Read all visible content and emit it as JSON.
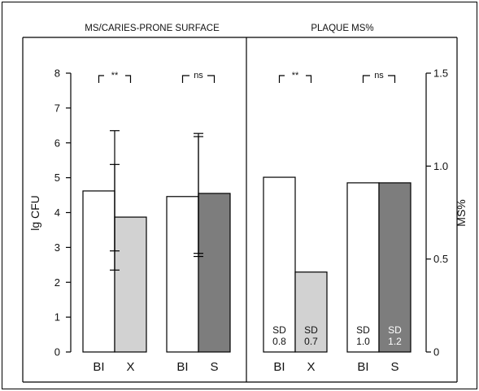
{
  "chart_data": [
    {
      "type": "bar",
      "title": "MS/CARIES-PRONE SURFACE",
      "ylabel": "lg CFU",
      "ylim": [
        0,
        8
      ],
      "yticks": [
        0,
        1,
        2,
        3,
        4,
        5,
        6,
        7,
        8
      ],
      "categories": [
        "BI",
        "X",
        "BI",
        "S"
      ],
      "values": [
        4.62,
        3.87,
        4.46,
        4.55
      ],
      "error_upper": [
        6.35,
        5.38,
        6.18,
        6.27
      ],
      "error_lower": [
        2.9,
        2.35,
        2.74,
        2.83
      ],
      "colors": [
        "#ffffff",
        "#d2d2d2",
        "#ffffff",
        "#7d7d7d"
      ],
      "significance": [
        {
          "from": 0,
          "to": 1,
          "label": "**"
        },
        {
          "from": 2,
          "to": 3,
          "label": "ns"
        }
      ]
    },
    {
      "type": "bar",
      "title": "PLAQUE MS%",
      "ylabel": "MS%",
      "ylim": [
        0,
        1.5
      ],
      "yticks": [
        "0",
        "0.5",
        "1.0",
        "1.5"
      ],
      "ytick_values": [
        0,
        0.5,
        1.0,
        1.5
      ],
      "axis_side": "right",
      "categories": [
        "BI",
        "X",
        "BI",
        "S"
      ],
      "values": [
        0.94,
        0.43,
        0.91,
        0.91
      ],
      "colors": [
        "#ffffff",
        "#d2d2d2",
        "#ffffff",
        "#7d7d7d"
      ],
      "annotations": [
        {
          "bar": 0,
          "line1": "SD",
          "line2": "0.8"
        },
        {
          "bar": 1,
          "line1": "SD",
          "line2": "0.7"
        },
        {
          "bar": 2,
          "line1": "SD",
          "line2": "1.0"
        },
        {
          "bar": 3,
          "line1": "SD",
          "line2": "1.2",
          "light": true
        }
      ],
      "significance": [
        {
          "from": 0,
          "to": 1,
          "label": "**"
        },
        {
          "from": 2,
          "to": 3,
          "label": "ns"
        }
      ]
    }
  ]
}
